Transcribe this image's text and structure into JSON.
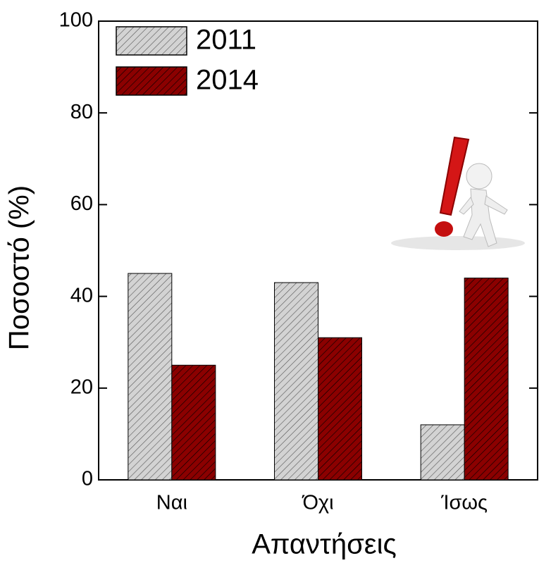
{
  "chart_data": {
    "type": "bar",
    "x_label": "Απαντήσεις",
    "y_label": "Ποσοστό  (%)",
    "categories": [
      "Ναι",
      "Όχι",
      "Ίσως"
    ],
    "series": [
      {
        "name": "2011",
        "color": "#d3d3d3",
        "values": [
          45,
          43,
          12
        ]
      },
      {
        "name": "2014",
        "color": "#8b0000",
        "values": [
          25,
          31,
          44
        ]
      }
    ],
    "ylim": [
      0,
      100
    ],
    "yticks": [
      0,
      20,
      40,
      60,
      80,
      100
    ],
    "grid": false,
    "legend": "upper-left"
  }
}
